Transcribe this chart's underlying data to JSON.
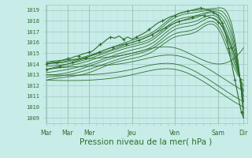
{
  "bg_color": "#c8ece8",
  "grid_color_major": "#a0c8c0",
  "grid_color_minor": "#b8dcd8",
  "line_color": "#2d6e2d",
  "xlabel": "Pression niveau de la mer( hPa )",
  "ylim": [
    1008.5,
    1019.5
  ],
  "yticks": [
    1009,
    1010,
    1011,
    1012,
    1013,
    1014,
    1015,
    1016,
    1017,
    1018,
    1019
  ],
  "day_positions": [
    0.0,
    0.5,
    1.0,
    2.0,
    3.0,
    4.0,
    4.6
  ],
  "day_labels": [
    "Mar",
    "Mar",
    "Mer",
    "Jeu",
    "Ven",
    "Sam",
    "Dir"
  ],
  "xlim": [
    -0.02,
    4.68
  ]
}
